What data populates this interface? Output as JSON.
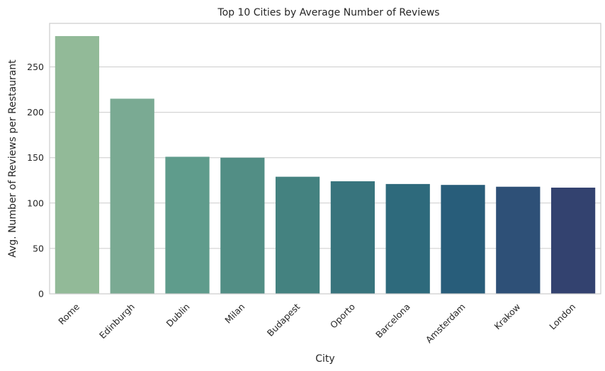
{
  "chart_data": {
    "type": "bar",
    "title": "Top 10 Cities by Average Number of Reviews",
    "xlabel": "City",
    "ylabel": "Avg. Number of Reviews per Restaurant",
    "categories": [
      "Rome",
      "Edinburgh",
      "Dublin",
      "Milan",
      "Budapest",
      "Oporto",
      "Barcelona",
      "Amsterdam",
      "Krakow",
      "London"
    ],
    "values": [
      284,
      215,
      151,
      150,
      129,
      124,
      121,
      120,
      118,
      117
    ],
    "colors": [
      "#92ba98",
      "#7aaa93",
      "#5f9c8c",
      "#528e85",
      "#448280",
      "#38747d",
      "#2e6a7c",
      "#285d7a",
      "#2e5077",
      "#33426f"
    ],
    "ylim": [
      0,
      298
    ],
    "yticks": [
      0,
      50,
      100,
      150,
      200,
      250
    ],
    "grid": true,
    "legend": "none"
  }
}
